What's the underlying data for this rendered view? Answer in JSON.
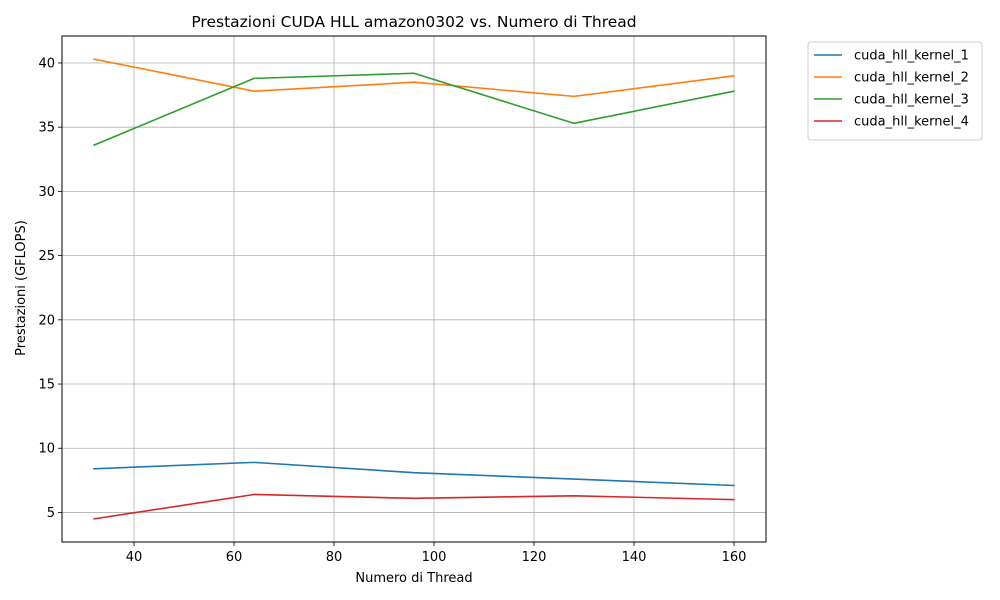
{
  "chart_data": {
    "type": "line",
    "title": "Prestazioni CUDA HLL amazon0302 vs. Numero di Thread",
    "xlabel": "Numero di Thread",
    "ylabel": "Prestazioni (GFLOPS)",
    "x": [
      32,
      64,
      96,
      128,
      160
    ],
    "xlim": [
      25.6,
      166.4
    ],
    "ylim": [
      2.7,
      42.1
    ],
    "xticks": [
      40,
      60,
      80,
      100,
      120,
      140,
      160
    ],
    "yticks": [
      5,
      10,
      15,
      20,
      25,
      30,
      35,
      40
    ],
    "grid": true,
    "legend_position": "outside-top-right",
    "series": [
      {
        "name": "cuda_hll_kernel_1",
        "color": "#1f77b4",
        "values": [
          8.4,
          8.9,
          8.1,
          7.6,
          7.1
        ]
      },
      {
        "name": "cuda_hll_kernel_2",
        "color": "#ff7f0e",
        "values": [
          40.3,
          37.8,
          38.5,
          37.4,
          39.0
        ]
      },
      {
        "name": "cuda_hll_kernel_3",
        "color": "#2ca02c",
        "values": [
          33.6,
          38.8,
          39.2,
          35.3,
          37.8
        ]
      },
      {
        "name": "cuda_hll_kernel_4",
        "color": "#d62728",
        "values": [
          4.5,
          6.4,
          6.1,
          6.3,
          6.0
        ]
      }
    ]
  }
}
